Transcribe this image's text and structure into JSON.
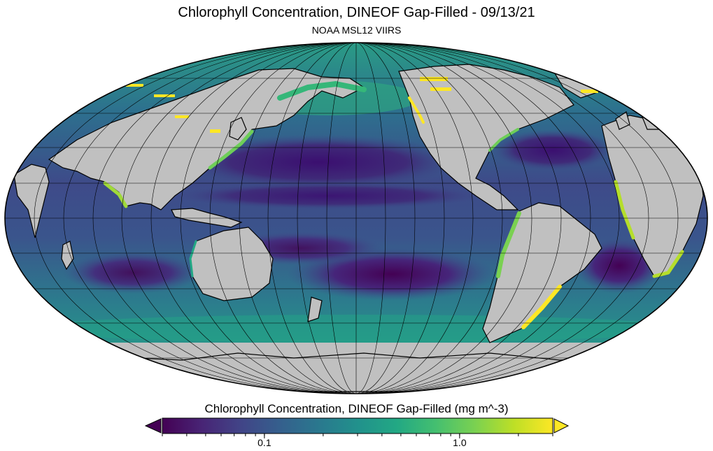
{
  "map": {
    "title": "Chlorophyll Concentration, DINEOF Gap-Filled - 09/13/21",
    "subtitle": "NOAA MSL12 VIIRS",
    "projection": "mollweide",
    "colors": {
      "land": "#c0c0c0",
      "no_data": "#c0c0c0",
      "coast": "#000000",
      "graticule": "#000000"
    }
  },
  "colorbar": {
    "title": "Chlorophyll Concentration, DINEOF Gap-Filled (mg m^-3)",
    "scale": "log",
    "colormap": "viridis",
    "range": [
      0.03,
      3
    ],
    "ticks": [
      {
        "value": 0.1,
        "label": "0.1"
      },
      {
        "value": 1.0,
        "label": "1.0"
      }
    ],
    "extend_low_color": "#440154",
    "extend_high_color": "#fde725"
  }
}
